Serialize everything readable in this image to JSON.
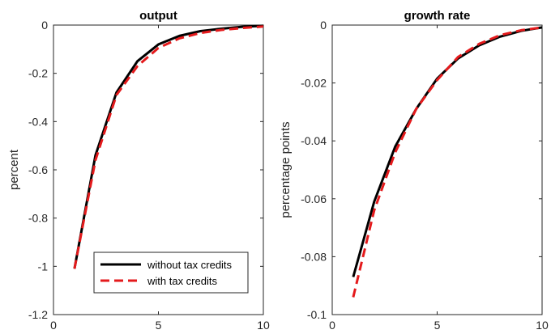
{
  "chart_data": [
    {
      "type": "line",
      "title": "output",
      "xlabel": "",
      "ylabel": "percent",
      "xlim": [
        0,
        10
      ],
      "ylim": [
        -1.2,
        0
      ],
      "xticks": [
        "0",
        "5",
        "10"
      ],
      "yticks": [
        "0",
        "-0.2",
        "-0.4",
        "-0.6",
        "-0.8",
        "-1",
        "-1.2"
      ],
      "x": [
        1,
        2,
        3,
        4,
        5,
        6,
        7,
        8,
        9,
        10
      ],
      "series": [
        {
          "name": "without tax credits",
          "color": "#000000",
          "style": "solid",
          "values": [
            -1.01,
            -0.54,
            -0.28,
            -0.15,
            -0.08,
            -0.045,
            -0.025,
            -0.015,
            -0.007,
            -0.003
          ]
        },
        {
          "name": "with tax credits",
          "color": "#e41a1c",
          "style": "dashed",
          "values": [
            -1.01,
            -0.56,
            -0.29,
            -0.17,
            -0.095,
            -0.055,
            -0.033,
            -0.02,
            -0.012,
            -0.006
          ]
        }
      ],
      "legend": {
        "placement": "bottom-right",
        "entries": [
          "without tax credits",
          "with tax credits"
        ]
      },
      "grid": false
    },
    {
      "type": "line",
      "title": "growth rate",
      "xlabel": "",
      "ylabel": "percentage points",
      "xlim": [
        0,
        10
      ],
      "ylim": [
        -0.1,
        0
      ],
      "xticks": [
        "0",
        "5",
        "10"
      ],
      "yticks": [
        "0",
        "-0.02",
        "-0.04",
        "-0.06",
        "-0.08",
        "-0.1"
      ],
      "x": [
        1,
        2,
        3,
        4,
        5,
        6,
        7,
        8,
        9,
        10
      ],
      "series": [
        {
          "name": "without tax credits",
          "color": "#000000",
          "style": "solid",
          "values": [
            -0.087,
            -0.061,
            -0.042,
            -0.029,
            -0.0185,
            -0.0115,
            -0.007,
            -0.004,
            -0.002,
            -0.0008
          ]
        },
        {
          "name": "with tax credits",
          "color": "#e41a1c",
          "style": "dashed",
          "values": [
            -0.094,
            -0.064,
            -0.044,
            -0.029,
            -0.019,
            -0.011,
            -0.0065,
            -0.0035,
            -0.0018,
            -0.0008
          ]
        }
      ],
      "grid": false
    }
  ]
}
